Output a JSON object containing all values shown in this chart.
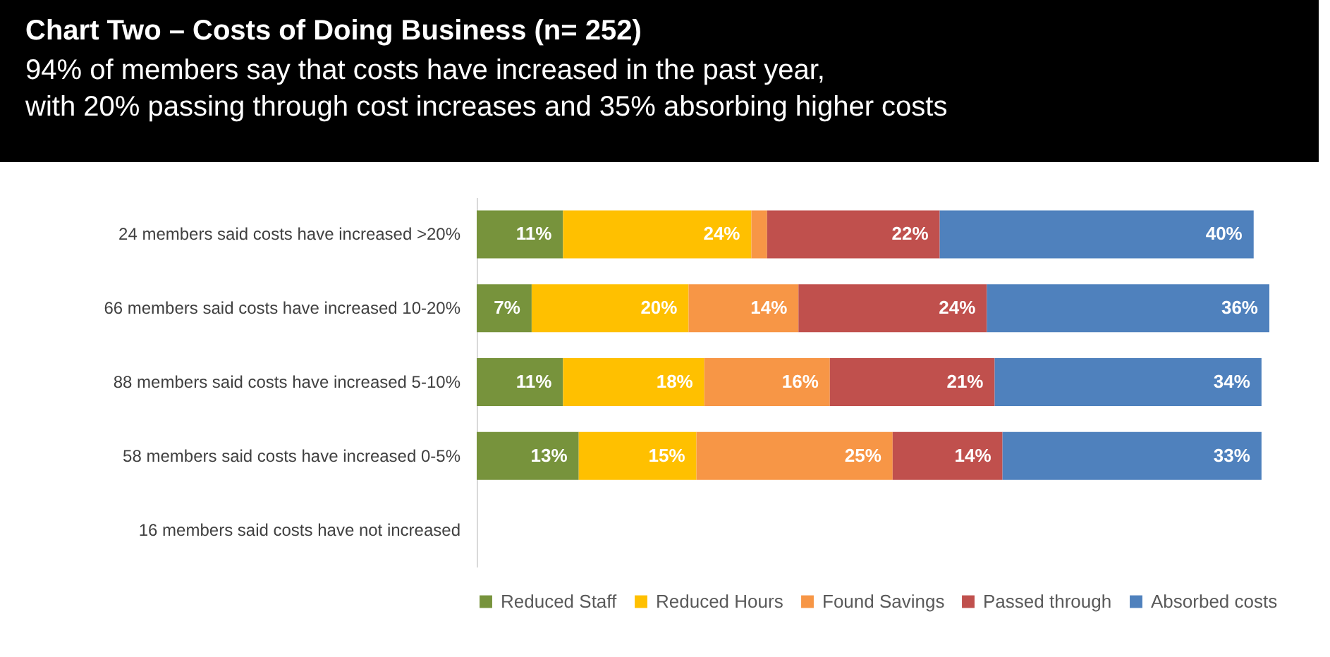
{
  "chart_data": {
    "type": "bar",
    "orientation": "horizontal",
    "stacked": true,
    "title": "Chart Two – Costs of Doing Business (n= 252)",
    "subtitle": "94% of members say that costs have increased in the past year,\nwith 20% passing through cost increases and 35% absorbing higher costs",
    "categories": [
      "24 members said costs have increased >20%",
      "66 members said costs have increased 10-20%",
      "88 members said costs have increased 5-10%",
      "58 members said costs have increased 0-5%",
      "16 members said costs have not increased"
    ],
    "series": [
      {
        "name": "Reduced Staff",
        "color": "#77933c",
        "values": [
          11,
          7,
          11,
          13,
          null
        ],
        "value_labels": [
          "11%",
          "7%",
          "11%",
          "13%",
          null
        ]
      },
      {
        "name": "Reduced Hours",
        "color": "#ffc000",
        "values": [
          24,
          20,
          18,
          15,
          null
        ],
        "value_labels": [
          "24%",
          "20%",
          "18%",
          "15%",
          null
        ]
      },
      {
        "name": "Found Savings",
        "color": "#f79646",
        "values": [
          2,
          14,
          16,
          25,
          null
        ],
        "value_labels": [
          null,
          "14%",
          "16%",
          "25%",
          null
        ]
      },
      {
        "name": "Passed through",
        "color": "#c0504d",
        "values": [
          22,
          24,
          21,
          14,
          null
        ],
        "value_labels": [
          "22%",
          "24%",
          "21%",
          "14%",
          null
        ]
      },
      {
        "name": "Absorbed costs",
        "color": "#4f81bd",
        "values": [
          40,
          36,
          34,
          33,
          null
        ],
        "value_labels": [
          "40%",
          "36%",
          "34%",
          "33%",
          null
        ]
      }
    ],
    "xlim": [
      0,
      101
    ],
    "tick_labels": "y",
    "grid": false,
    "legend": "bottom"
  }
}
